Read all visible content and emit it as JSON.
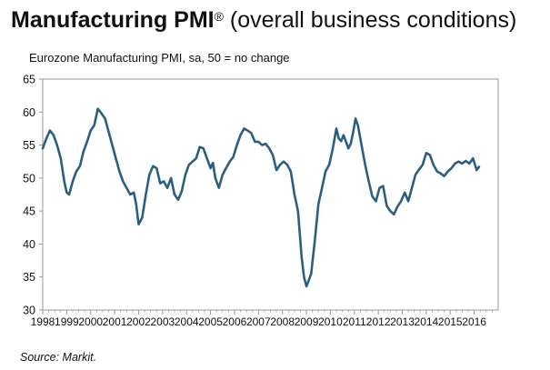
{
  "header": {
    "title_bold": "Manufacturing PMI",
    "title_reg": "®",
    "title_rest": " (overall business conditions)",
    "subtitle": "Eurozone Manufacturing PMI, sa, 50 = no change"
  },
  "footer": {
    "source": "Source: Markit."
  },
  "colors": {
    "line": "#2b5f82",
    "axis": "#999999",
    "text": "#111111"
  },
  "chart_data": {
    "type": "line",
    "title": "Manufacturing PMI® (overall business conditions)",
    "subtitle": "Eurozone Manufacturing PMI, sa, 50 = no change",
    "xlabel": "",
    "ylabel": "",
    "ylim": [
      30,
      65
    ],
    "yticks": [
      30,
      35,
      40,
      45,
      50,
      55,
      60,
      65
    ],
    "xlim": [
      1998.0,
      2017.0
    ],
    "xticks": [
      "1998",
      "1999",
      "2000",
      "2001",
      "2002",
      "2003",
      "2004",
      "2005",
      "2006",
      "2007",
      "2008",
      "2009",
      "2010",
      "2011",
      "2012",
      "2013",
      "2014",
      "2015",
      "2016"
    ],
    "grid": false,
    "series": [
      {
        "x": [
          1998.0,
          1998.15,
          1998.3,
          1998.45,
          1998.6,
          1998.75,
          1998.9,
          1999.0,
          1999.1,
          1999.25,
          1999.4,
          1999.55,
          1999.7,
          1999.85,
          2000.0,
          2000.15,
          2000.3,
          2000.45,
          2000.6,
          2000.75,
          2000.9,
          2001.05,
          2001.2,
          2001.35,
          2001.5,
          2001.65,
          2001.8,
          2001.9,
          2002.0,
          2002.15,
          2002.3,
          2002.45,
          2002.6,
          2002.75,
          2002.9,
          2003.05,
          2003.2,
          2003.35,
          2003.5,
          2003.65,
          2003.8,
          2003.95,
          2004.1,
          2004.25,
          2004.4,
          2004.55,
          2004.7,
          2004.85,
          2005.0,
          2005.1,
          2005.2,
          2005.35,
          2005.5,
          2005.65,
          2005.8,
          2005.95,
          2006.1,
          2006.25,
          2006.4,
          2006.55,
          2006.7,
          2006.85,
          2007.0,
          2007.15,
          2007.3,
          2007.45,
          2007.6,
          2007.75,
          2007.9,
          2008.05,
          2008.2,
          2008.35,
          2008.5,
          2008.65,
          2008.8,
          2008.9,
          2009.0,
          2009.1,
          2009.2,
          2009.35,
          2009.5,
          2009.65,
          2009.8,
          2009.95,
          2010.1,
          2010.25,
          2010.35,
          2010.45,
          2010.55,
          2010.65,
          2010.75,
          2010.85,
          2010.95,
          2011.05,
          2011.15,
          2011.3,
          2011.45,
          2011.6,
          2011.75,
          2011.9,
          2012.05,
          2012.2,
          2012.35,
          2012.5,
          2012.65,
          2012.8,
          2012.95,
          2013.1,
          2013.25,
          2013.4,
          2013.55,
          2013.7,
          2013.85,
          2014.0,
          2014.15,
          2014.3,
          2014.45,
          2014.6,
          2014.75,
          2014.9,
          2015.05,
          2015.2,
          2015.35,
          2015.5,
          2015.65,
          2015.8,
          2015.95,
          2016.1,
          2016.2
        ],
        "y": [
          54.5,
          56.0,
          57.2,
          56.5,
          55.0,
          53.0,
          49.5,
          47.8,
          47.5,
          49.5,
          51.0,
          51.8,
          54.0,
          55.5,
          57.2,
          58.0,
          60.5,
          59.8,
          59.0,
          57.0,
          55.0,
          53.0,
          51.0,
          49.5,
          48.5,
          47.5,
          47.8,
          46.0,
          43.0,
          44.0,
          47.5,
          50.5,
          51.8,
          51.5,
          49.2,
          49.5,
          48.5,
          50.0,
          47.5,
          46.7,
          48.0,
          50.5,
          52.0,
          52.5,
          53.0,
          54.7,
          54.5,
          53.0,
          51.5,
          52.3,
          50.0,
          48.5,
          50.5,
          51.5,
          52.5,
          53.2,
          55.0,
          56.5,
          57.5,
          57.2,
          56.8,
          55.5,
          55.5,
          55.0,
          55.2,
          54.5,
          53.5,
          51.2,
          52.0,
          52.5,
          52.0,
          51.0,
          47.5,
          45.0,
          38.0,
          35.0,
          33.6,
          34.5,
          35.5,
          40.5,
          46.0,
          48.5,
          51.0,
          52.0,
          54.5,
          57.5,
          56.0,
          55.6,
          56.5,
          55.5,
          54.5,
          55.2,
          57.0,
          59.0,
          58.0,
          55.0,
          52.0,
          49.5,
          47.2,
          46.5,
          48.5,
          48.8,
          45.8,
          45.0,
          44.5,
          45.7,
          46.5,
          47.8,
          46.5,
          48.5,
          50.5,
          51.3,
          52.0,
          53.8,
          53.5,
          52.0,
          51.0,
          50.7,
          50.3,
          51.0,
          51.5,
          52.2,
          52.5,
          52.2,
          52.6,
          52.2,
          53.0,
          51.2,
          51.7
        ]
      }
    ]
  }
}
